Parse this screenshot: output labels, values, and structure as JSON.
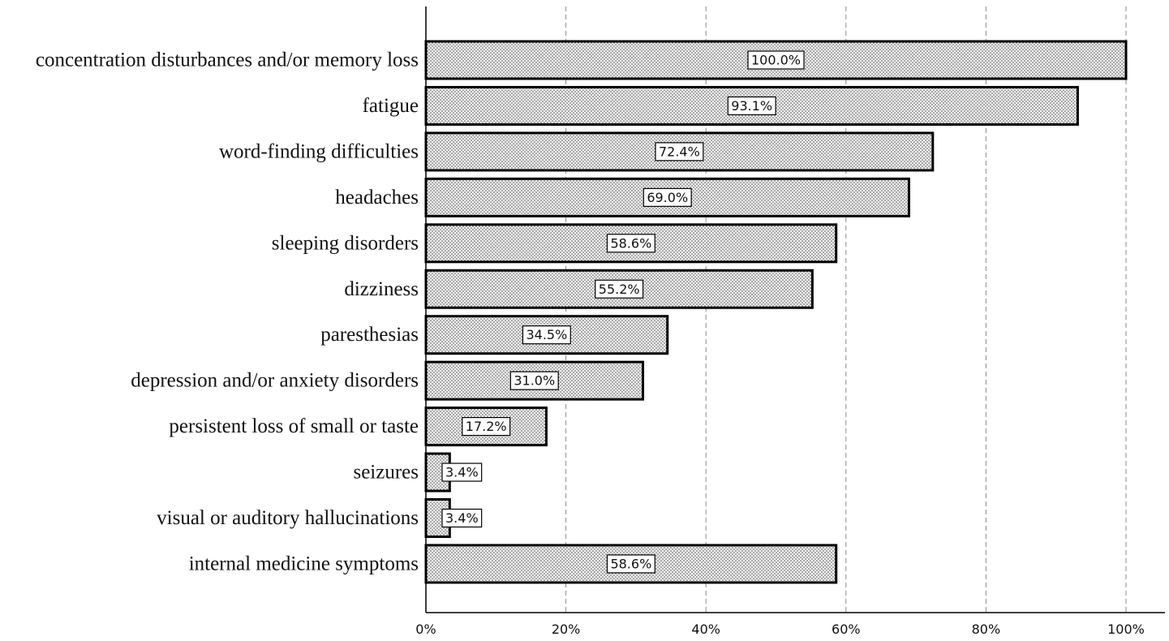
{
  "chart_data": {
    "type": "bar",
    "orientation": "horizontal",
    "title": "",
    "xlabel": "",
    "ylabel": "",
    "xlim": [
      0,
      100
    ],
    "grid": true,
    "categories": [
      "concentration disturbances and/or memory loss",
      "fatigue",
      "word-finding difficulties",
      "headaches",
      "sleeping disorders",
      "dizziness",
      "paresthesias",
      "depression and/or anxiety disorders",
      "persistent loss of small or taste",
      "seizures",
      "visual or auditory hallucinations",
      "internal medicine symptoms"
    ],
    "values": [
      100.0,
      93.1,
      72.4,
      69.0,
      58.6,
      55.2,
      34.5,
      31.0,
      17.2,
      3.4,
      3.4,
      58.6
    ],
    "data_labels": [
      "100.0%",
      "93.1%",
      "72.4%",
      "69.0%",
      "58.6%",
      "55.2%",
      "34.5%",
      "31.0%",
      "17.2%",
      "3.4%",
      "3.4%",
      "58.6%"
    ],
    "x_ticks": [
      0,
      20,
      40,
      60,
      80,
      100
    ],
    "x_tick_labels": [
      "0%",
      "20%",
      "40%",
      "60%",
      "80%",
      "100%"
    ]
  },
  "colors": {
    "bar_fill_base": "#f2f2f2",
    "bar_dots": "#444444",
    "bar_stroke": "#000000",
    "grid": "#8a8a8a",
    "text": "#111111"
  }
}
